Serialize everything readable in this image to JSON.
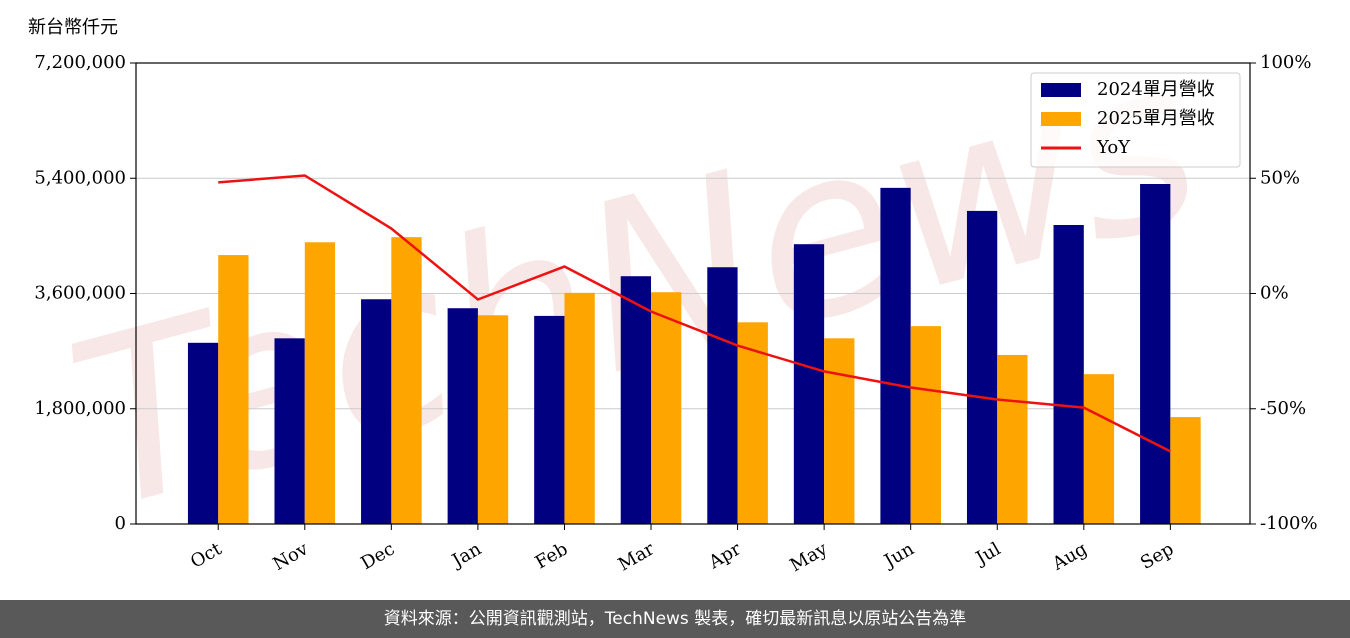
{
  "chart_data": {
    "type": "bar_line",
    "y_label": "新台幣仟元",
    "categories": [
      "Oct",
      "Nov",
      "Dec",
      "Jan",
      "Feb",
      "Mar",
      "Apr",
      "May",
      "Jun",
      "Jul",
      "Aug",
      "Sep"
    ],
    "series": [
      {
        "name": "2024單月營收",
        "color": "#000080",
        "type": "bar",
        "values": [
          2830000,
          2900000,
          3510000,
          3370000,
          3250000,
          3870000,
          4010000,
          4370000,
          5250000,
          4890000,
          4670000,
          5310000
        ]
      },
      {
        "name": "2025單月營收",
        "color": "#ffa500",
        "type": "bar",
        "values": [
          4200000,
          4400000,
          4480000,
          3260000,
          3610000,
          3620000,
          3150000,
          2900000,
          3090000,
          2640000,
          2340000,
          1670000
        ]
      },
      {
        "name": "YoY",
        "color": "#ee1111",
        "type": "line",
        "axis": "y2",
        "values": [
          48.2,
          51.2,
          28.2,
          -2.6,
          11.7,
          -7.8,
          -22.6,
          -33.8,
          -40.8,
          -46,
          -49.5,
          -68.5
        ]
      }
    ],
    "ylim": [
      0,
      7200000
    ],
    "yticks": [
      0,
      {
        "value": 1800000,
        "label": "1,800,000"
      },
      {
        "value": 3600000,
        "label": "3,600,000"
      },
      {
        "value": 5400000,
        "label": "5,400,000"
      },
      {
        "value": 7200000,
        "label": "7,200,000"
      }
    ],
    "y2lim": [
      -100,
      100
    ],
    "y2ticks": [
      {
        "value": -100,
        "label": "-100%"
      },
      {
        "value": -50,
        "label": "-50%"
      },
      {
        "value": 0,
        "label": "0%"
      },
      {
        "value": 50,
        "label": "50%"
      },
      {
        "value": 100,
        "label": "100%"
      }
    ],
    "grid": true,
    "legend": "upper right",
    "watermark": "TechNews",
    "footer": "資料來源：公開資訊觀測站，TechNews 製表，確切最新訊息以原站公告為準"
  }
}
